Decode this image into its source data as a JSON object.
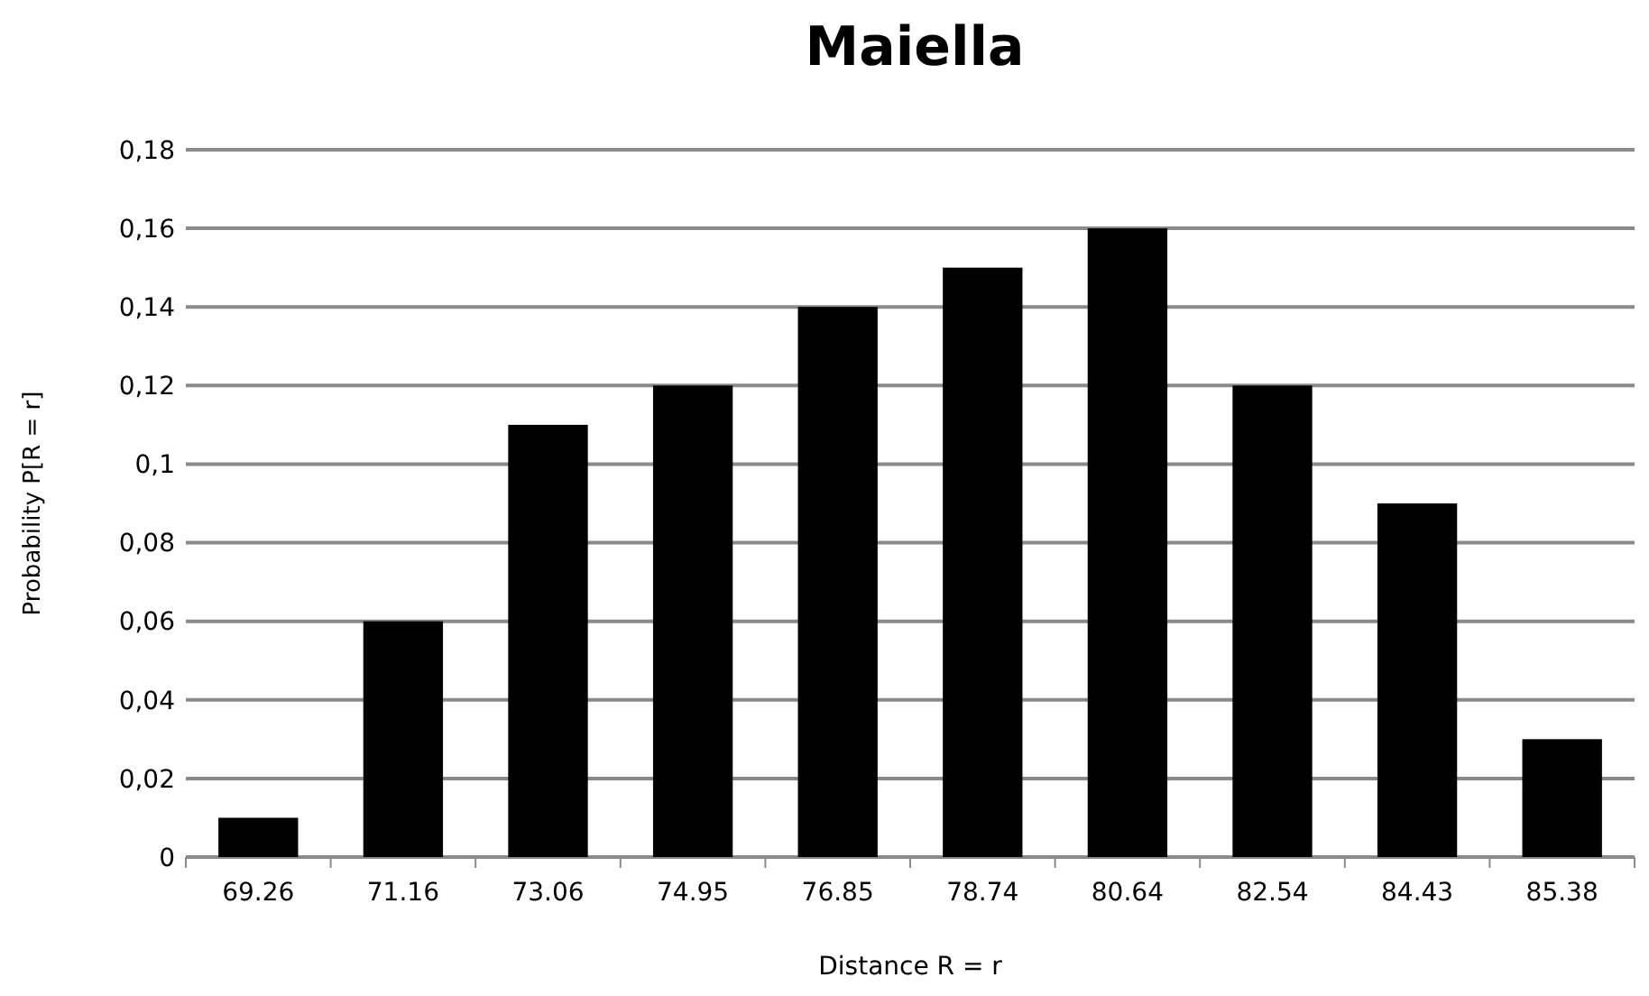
{
  "chart_data": {
    "type": "bar",
    "title": "Maiella",
    "xlabel": "Distance R = r",
    "ylabel": "Probability P[R = r]",
    "categories": [
      "69.26",
      "71.16",
      "73.06",
      "74.95",
      "76.85",
      "78.74",
      "80.64",
      "82.54",
      "84.43",
      "85.38"
    ],
    "values": [
      0.01,
      0.06,
      0.11,
      0.12,
      0.14,
      0.15,
      0.16,
      0.12,
      0.09,
      0.03
    ],
    "color": "#000000",
    "ylim": [
      0,
      0.18
    ],
    "yticks": [
      0,
      {
        "value": 0.02,
        "label": "0,02"
      },
      {
        "value": 0.04,
        "label": "0,04"
      },
      {
        "value": 0.06,
        "label": "0,06"
      },
      {
        "value": 0.08,
        "label": "0,08"
      },
      {
        "value": 0.1,
        "label": "0,1"
      },
      {
        "value": 0.12,
        "label": "0,12"
      },
      {
        "value": 0.14,
        "label": "0,14"
      },
      {
        "value": 0.16,
        "label": "0,16"
      },
      {
        "value": 0.18,
        "label": "0,18"
      }
    ],
    "grid": "y"
  }
}
